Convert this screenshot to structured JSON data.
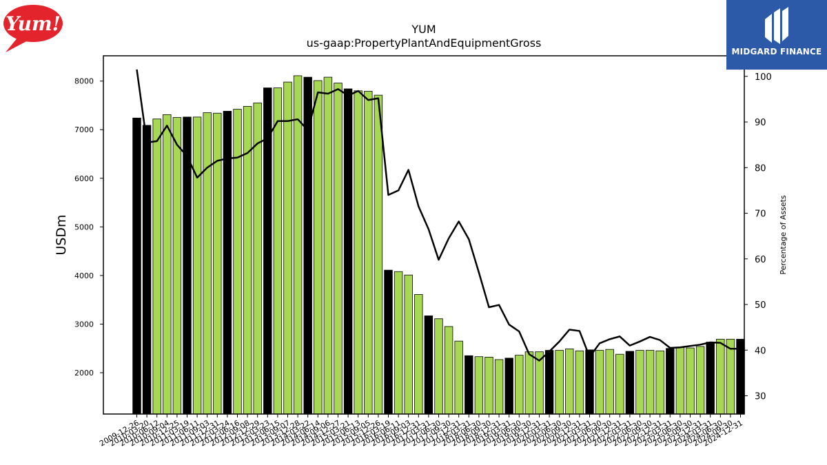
{
  "chart_data": {
    "type": "bar",
    "title": "YUM",
    "subtitle": "us-gaap:PropertyPlantAndEquipmentGross",
    "ylabel": "USDm",
    "y2label": "Percentage of Assets",
    "ylim": [
      1150,
      8520
    ],
    "y2lim": [
      26,
      104.5
    ],
    "yticks": [
      2000,
      3000,
      4000,
      5000,
      6000,
      7000,
      8000
    ],
    "y2ticks": [
      30,
      40,
      50,
      60,
      70,
      80,
      90,
      100
    ],
    "categories": [
      "2009-12-26",
      "2010-03-20",
      "2010-06-12",
      "2010-09-04",
      "2010-12-25",
      "2011-03-19",
      "2011-06-11",
      "2011-09-03",
      "2011-12-31",
      "2012-03-24",
      "2012-06-16",
      "2012-09-08",
      "2012-12-29",
      "2013-03-23",
      "2013-06-15",
      "2013-09-07",
      "2013-12-28",
      "2014-03-22",
      "2014-06-14",
      "2014-09-06",
      "2014-12-27",
      "2015-03-21",
      "2015-06-13",
      "2015-09-05",
      "2015-12-26",
      "2016-03-19",
      "2016-06-11",
      "2016-09-03",
      "2016-12-31",
      "2017-03-31",
      "2017-06-30",
      "2017-09-30",
      "2017-12-31",
      "2018-03-31",
      "2018-06-30",
      "2018-09-30",
      "2018-12-31",
      "2019-03-31",
      "2019-06-30",
      "2019-09-30",
      "2019-12-31",
      "2020-03-31",
      "2020-06-30",
      "2020-09-30",
      "2020-12-31",
      "2021-03-31",
      "2021-06-30",
      "2021-09-30",
      "2021-12-31",
      "2022-03-31",
      "2022-06-30",
      "2022-09-30",
      "2022-12-31",
      "2023-03-31",
      "2023-06-30",
      "2023-09-30",
      "2023-12-31",
      "2024-03-31",
      "2024-06-30",
      "2024-09-30",
      "2024-12-31"
    ],
    "series": [
      {
        "values": [
          7240,
          7090,
          7220,
          7310,
          7250,
          7260,
          7260,
          7350,
          7340,
          7380,
          7420,
          7480,
          7550,
          7860,
          7860,
          7980,
          8110,
          8080,
          8010,
          8080,
          7960,
          7840,
          7800,
          7790,
          7710,
          4110,
          4080,
          4010,
          3610,
          3170,
          3110,
          2950,
          2650,
          2350,
          2330,
          2320,
          2270,
          2300,
          2360,
          2430,
          2430,
          2460,
          2460,
          2490,
          2450,
          2470,
          2460,
          2480,
          2380,
          2440,
          2460,
          2460,
          2450,
          2500,
          2520,
          2510,
          2540,
          2630,
          2690,
          2690,
          2690
        ],
        "colors": [
          "#000000",
          "#000000",
          "#a6d854",
          "#a6d854",
          "#a6d854",
          "#000000",
          "#a6d854",
          "#a6d854",
          "#a6d854",
          "#000000",
          "#a6d854",
          "#a6d854",
          "#a6d854",
          "#000000",
          "#a6d854",
          "#a6d854",
          "#a6d854",
          "#000000",
          "#a6d854",
          "#a6d854",
          "#a6d854",
          "#000000",
          "#a6d854",
          "#a6d854",
          "#a6d854",
          "#000000",
          "#a6d854",
          "#a6d854",
          "#a6d854",
          "#000000",
          "#a6d854",
          "#a6d854",
          "#a6d854",
          "#000000",
          "#a6d854",
          "#a6d854",
          "#a6d854",
          "#000000",
          "#a6d854",
          "#a6d854",
          "#a6d854",
          "#000000",
          "#a6d854",
          "#a6d854",
          "#a6d854",
          "#000000",
          "#a6d854",
          "#a6d854",
          "#a6d854",
          "#000000",
          "#a6d854",
          "#a6d854",
          "#a6d854",
          "#000000",
          "#a6d854",
          "#a6d854",
          "#a6d854",
          "#000000",
          "#a6d854",
          "#a6d854",
          "#000000"
        ]
      },
      {
        "axis": "right",
        "type": "line",
        "values": [
          101.5,
          85.5,
          85.8,
          89.2,
          85.0,
          82.5,
          77.8,
          80.0,
          81.5,
          82.0,
          82.2,
          83.2,
          85.3,
          86.4,
          90.2,
          90.2,
          90.6,
          88.2,
          96.5,
          96.2,
          97.2,
          95.8,
          96.8,
          94.8,
          95.2,
          74.0,
          75.0,
          79.5,
          71.5,
          66.5,
          59.8,
          64.5,
          68.2,
          64.3,
          57.0,
          49.4,
          49.9,
          45.6,
          44.1,
          39.1,
          37.7,
          39.7,
          41.9,
          44.5,
          44.2,
          38.5,
          41.5,
          42.4,
          43.0,
          41.0,
          41.9,
          42.9,
          42.2,
          40.5,
          40.6,
          40.9,
          41.2,
          41.7,
          41.6,
          40.3,
          40.3
        ]
      }
    ],
    "colors": {
      "bar_green": "#a6d854",
      "bar_black": "#000000",
      "line": "#000000"
    }
  },
  "branding": {
    "left_logo_text": "Yum!",
    "right_logo_text": "MIDGARD FINANCE"
  }
}
